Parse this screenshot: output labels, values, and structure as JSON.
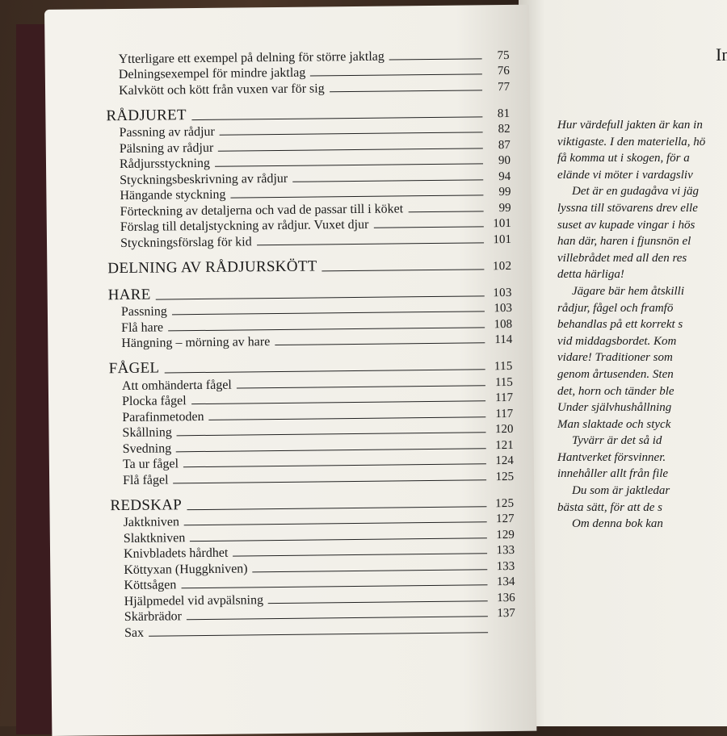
{
  "toc": {
    "intro_entries": [
      {
        "title": "Ytterligare ett exempel på delning för större jaktlag",
        "page": 75
      },
      {
        "title": "Delningsexempel för mindre jaktlag",
        "page": 76
      },
      {
        "title": "Kalvkött och kött från vuxen var för sig",
        "page": 77
      }
    ],
    "sections": [
      {
        "heading": "RÅDJURET",
        "page": 81,
        "entries": [
          {
            "title": "Passning av rådjur",
            "page": 82
          },
          {
            "title": "Pälsning av rådjur",
            "page": 87
          },
          {
            "title": "Rådjursstyckning",
            "page": 90
          },
          {
            "title": "Styckningsbeskrivning av rådjur",
            "page": 94
          },
          {
            "title": "Hängande styckning",
            "page": 99
          },
          {
            "title": "Förteckning av detaljerna och vad de passar till i köket",
            "page": 99
          },
          {
            "title": "Förslag till detaljstyckning av rådjur. Vuxet djur",
            "page": 101
          },
          {
            "title": "Styckningsförslag för kid",
            "page": 101
          }
        ]
      },
      {
        "heading": "DELNING AV RÅDJURSKÖTT",
        "page": 102,
        "entries": []
      },
      {
        "heading": "HARE",
        "page": 103,
        "entries": [
          {
            "title": "Passning",
            "page": 103
          },
          {
            "title": "Flå hare",
            "page": 108
          },
          {
            "title": "Hängning – mörning av hare",
            "page": 114
          }
        ]
      },
      {
        "heading": "FÅGEL",
        "page": 115,
        "entries": [
          {
            "title": "Att omhänderta fågel",
            "page": 115
          },
          {
            "title": "Plocka fågel",
            "page": 117
          },
          {
            "title": "Parafinmetoden",
            "page": 117
          },
          {
            "title": "Skållning",
            "page": 120
          },
          {
            "title": "Svedning",
            "page": 121
          },
          {
            "title": "Ta ur fågel",
            "page": 124
          },
          {
            "title": "Flå fågel",
            "page": 125
          }
        ]
      },
      {
        "heading": "REDSKAP",
        "page": 125,
        "entries": [
          {
            "title": "Jaktkniven",
            "page": 127
          },
          {
            "title": "Slaktkniven",
            "page": 129
          },
          {
            "title": "Knivbladets hårdhet",
            "page": 133
          },
          {
            "title": "Köttyxan (Huggkniven)",
            "page": 133
          },
          {
            "title": "Köttsågen",
            "page": 134
          },
          {
            "title": "Hjälpmedel vid avpälsning",
            "page": 136
          },
          {
            "title": "Skärbrädor",
            "page": 137
          },
          {
            "title": "Sax"
          }
        ]
      }
    ]
  },
  "right_page": {
    "heading": "In",
    "paragraphs": [
      [
        "Hur värdefull jakten är kan in",
        "viktigaste. I den materiella, hö",
        "få komma ut i skogen, för a",
        "elände vi möter i vardagsliv"
      ],
      [
        "Det är en gudagåva vi jäg",
        "lyssna till stövarens drev elle",
        "suset av kupade vingar i hös",
        "han där, haren i fjunsnön el",
        "villebrådet med all den res",
        "detta härliga!"
      ],
      [
        "Jägare bär hem åtskilli",
        "rådjur, fågel och framfö",
        "behandlas på ett korrekt s",
        "vid middagsbordet. Kom",
        "vidare! Traditioner som",
        "genom årtusenden. Sten",
        "det, horn och tänder ble",
        "Under självhushållning",
        "Man slaktade och styck"
      ],
      [
        "Tyvärr är det så id",
        "Hantverket försvinner.",
        "innehåller allt från file"
      ],
      [
        "Du som är jaktledar",
        "bästa sätt, för att de s"
      ],
      [
        "Om denna bok kan"
      ]
    ]
  }
}
